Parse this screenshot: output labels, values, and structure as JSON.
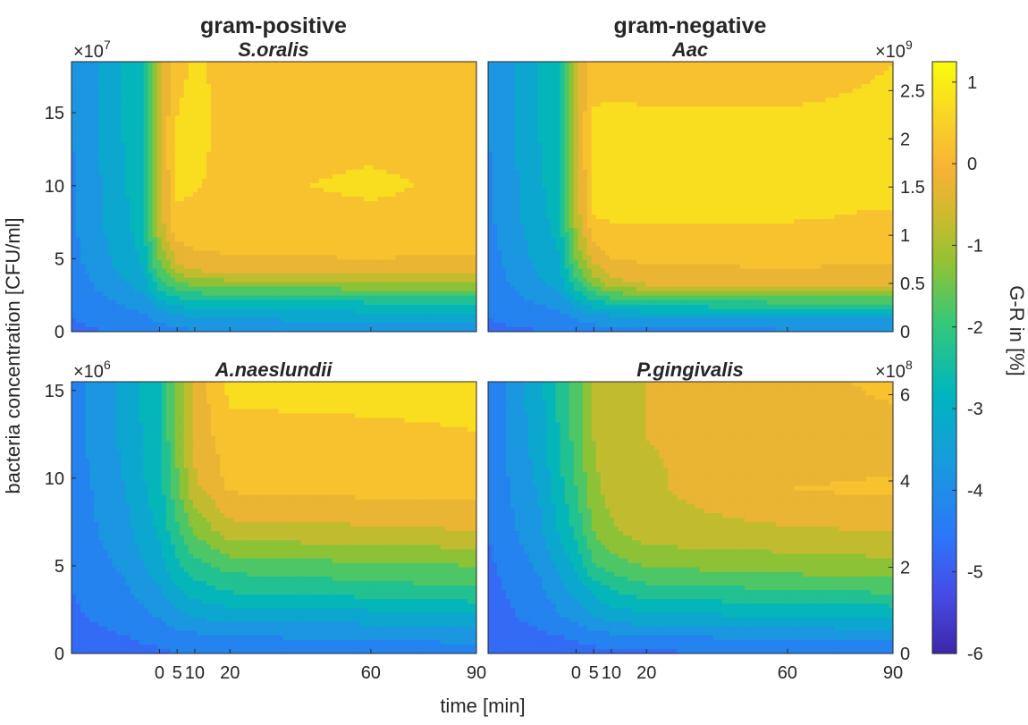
{
  "figure": {
    "column_titles": [
      "gram-positive",
      "gram-negative"
    ],
    "xlabel": "time [min]",
    "ylabel": "bacteria concentration [CFU/ml]",
    "colorbar_label": "G-R in [%]"
  },
  "chart_data": [
    {
      "type": "heatmap",
      "title": "S.oralis",
      "x_ticks": [
        "0",
        "5",
        "10",
        "20",
        "60",
        "90"
      ],
      "x_tick_values": [
        0,
        5,
        10,
        20,
        60,
        90
      ],
      "xlim": [
        -25,
        90
      ],
      "y_ticks": [
        "0",
        "5",
        "10",
        "15"
      ],
      "y_tick_values": [
        0,
        5,
        10,
        15
      ],
      "y_multiplier": "×10^7",
      "y_multiplier_base": "×10",
      "y_multiplier_exp": "7",
      "ylim": [
        0,
        18.5
      ],
      "y_axis_side": "left",
      "z_grid": {
        "x": [
          -25,
          -5,
          0,
          5,
          10,
          20,
          60,
          90
        ],
        "y": [
          0,
          1,
          2,
          3,
          4.5,
          7,
          10,
          14,
          18.5
        ],
        "z": [
          [
            -4.6,
            -4.4,
            -4.3,
            -4.2,
            -4.0,
            -4.0,
            -3.9,
            -3.9
          ],
          [
            -4.5,
            -4.1,
            -3.8,
            -3.6,
            -3.5,
            -3.4,
            -3.3,
            -3.3
          ],
          [
            -4.4,
            -3.8,
            -3.2,
            -2.8,
            -2.7,
            -2.6,
            -2.5,
            -2.5
          ],
          [
            -4.3,
            -3.4,
            -2.4,
            -1.9,
            -1.6,
            -1.5,
            -1.4,
            -1.4
          ],
          [
            -4.2,
            -3.0,
            -1.6,
            -0.6,
            -0.2,
            -0.1,
            -0.05,
            -0.1
          ],
          [
            -4.1,
            -2.8,
            -0.8,
            0.3,
            0.3,
            0.2,
            0.2,
            0.2
          ],
          [
            -4.1,
            -2.7,
            -0.6,
            0.6,
            0.55,
            0.3,
            0.65,
            0.3
          ],
          [
            -4.0,
            -2.6,
            -0.5,
            0.55,
            0.7,
            0.3,
            0.2,
            0.2
          ],
          [
            -4.0,
            -2.6,
            -0.5,
            0.3,
            0.6,
            0.3,
            0.2,
            0.2
          ]
        ]
      }
    },
    {
      "type": "heatmap",
      "title": "Aac",
      "x_ticks": [
        "0",
        "5",
        "10",
        "20",
        "60",
        "90"
      ],
      "x_tick_values": [
        0,
        5,
        10,
        20,
        60,
        90
      ],
      "xlim": [
        -25,
        90
      ],
      "y_ticks": [
        "0",
        "0.5",
        "1",
        "1.5",
        "2",
        "2.5"
      ],
      "y_tick_values": [
        0,
        0.5,
        1,
        1.5,
        2,
        2.5
      ],
      "y_multiplier": "×10^9",
      "y_multiplier_base": "×10",
      "y_multiplier_exp": "9",
      "ylim": [
        0,
        2.8
      ],
      "y_axis_side": "right",
      "z_grid": {
        "x": [
          -25,
          -5,
          0,
          5,
          10,
          20,
          60,
          90
        ],
        "y": [
          0,
          0.15,
          0.3,
          0.5,
          0.8,
          1.2,
          1.6,
          2.1,
          2.8
        ],
        "z": [
          [
            -4.6,
            -4.5,
            -4.4,
            -4.3,
            -4.2,
            -4.2,
            -4.1,
            -4.1
          ],
          [
            -4.5,
            -4.2,
            -3.9,
            -3.7,
            -3.6,
            -3.5,
            -3.4,
            -3.4
          ],
          [
            -4.4,
            -3.8,
            -3.2,
            -2.7,
            -2.4,
            -2.2,
            -2.0,
            -2.0
          ],
          [
            -4.3,
            -3.3,
            -2.2,
            -1.3,
            -0.7,
            -0.4,
            -0.3,
            -0.4
          ],
          [
            -4.2,
            -3.0,
            -1.3,
            -0.2,
            0.1,
            0.2,
            0.25,
            0.2
          ],
          [
            -4.1,
            -2.8,
            -0.8,
            0.5,
            0.6,
            0.6,
            0.55,
            0.45
          ],
          [
            -4.1,
            -2.7,
            -0.6,
            0.6,
            0.65,
            0.6,
            0.6,
            0.7
          ],
          [
            -4.0,
            -2.6,
            -0.5,
            0.6,
            0.65,
            0.6,
            0.6,
            0.6
          ],
          [
            -4.0,
            -2.6,
            -0.5,
            0.3,
            0.3,
            0.3,
            0.3,
            0.5
          ]
        ]
      }
    },
    {
      "type": "heatmap",
      "title": "A.naeslundii",
      "x_ticks": [
        "0",
        "5",
        "10",
        "20",
        "60",
        "90"
      ],
      "x_tick_values": [
        0,
        5,
        10,
        20,
        60,
        90
      ],
      "xlim": [
        -25,
        90
      ],
      "y_ticks": [
        "0",
        "5",
        "10",
        "15"
      ],
      "y_tick_values": [
        0,
        5,
        10,
        15
      ],
      "y_multiplier": "×10^6",
      "y_multiplier_base": "×10",
      "y_multiplier_exp": "6",
      "ylim": [
        0,
        15.5
      ],
      "y_axis_side": "left",
      "z_grid": {
        "x": [
          -25,
          -10,
          0,
          5,
          10,
          20,
          60,
          90
        ],
        "y": [
          0,
          1,
          2,
          3.5,
          5,
          7,
          9.5,
          12,
          15.5
        ],
        "z": [
          [
            -4.8,
            -4.7,
            -4.6,
            -4.5,
            -4.4,
            -4.4,
            -4.3,
            -4.3
          ],
          [
            -4.7,
            -4.5,
            -4.3,
            -4.2,
            -4.1,
            -4.0,
            -3.9,
            -3.8
          ],
          [
            -4.6,
            -4.3,
            -4.0,
            -3.7,
            -3.5,
            -3.4,
            -3.3,
            -3.2
          ],
          [
            -4.5,
            -4.1,
            -3.6,
            -3.1,
            -2.8,
            -2.5,
            -2.3,
            -2.1
          ],
          [
            -4.4,
            -3.9,
            -3.2,
            -2.6,
            -2.2,
            -1.8,
            -1.6,
            -1.5
          ],
          [
            -4.3,
            -3.7,
            -2.9,
            -2.1,
            -1.4,
            -0.7,
            -0.6,
            -0.5
          ],
          [
            -4.3,
            -3.5,
            -2.7,
            -1.6,
            -0.6,
            0.1,
            0.2,
            0.2
          ],
          [
            -4.2,
            -3.4,
            -2.6,
            -1.4,
            -0.4,
            0.3,
            0.35,
            0.45
          ],
          [
            -4.2,
            -3.4,
            -2.5,
            -1.3,
            -0.3,
            0.65,
            0.7,
            0.7
          ]
        ]
      }
    },
    {
      "type": "heatmap",
      "title": "P.gingivalis",
      "x_ticks": [
        "0",
        "5",
        "10",
        "20",
        "60",
        "90"
      ],
      "x_tick_values": [
        0,
        5,
        10,
        20,
        60,
        90
      ],
      "xlim": [
        -25,
        90
      ],
      "y_ticks": [
        "0",
        "2",
        "4",
        "6"
      ],
      "y_tick_values": [
        0,
        2,
        4,
        6
      ],
      "y_multiplier": "×10^8",
      "y_multiplier_base": "×10",
      "y_multiplier_exp": "8",
      "ylim": [
        0,
        6.3
      ],
      "y_axis_side": "right",
      "z_grid": {
        "x": [
          -25,
          -10,
          0,
          5,
          10,
          20,
          60,
          90
        ],
        "y": [
          0,
          0.4,
          0.8,
          1.4,
          2.0,
          2.8,
          3.8,
          5.0,
          6.3
        ],
        "z": [
          [
            -5.0,
            -4.9,
            -4.8,
            -4.7,
            -4.7,
            -4.6,
            -4.5,
            -4.5
          ],
          [
            -4.9,
            -4.6,
            -4.4,
            -4.2,
            -4.1,
            -4.0,
            -3.9,
            -3.8
          ],
          [
            -4.8,
            -4.3,
            -3.9,
            -3.6,
            -3.4,
            -3.2,
            -3.1,
            -3.0
          ],
          [
            -4.7,
            -4.1,
            -3.4,
            -2.9,
            -2.6,
            -2.3,
            -2.1,
            -2.0
          ],
          [
            -4.6,
            -3.9,
            -2.9,
            -2.1,
            -1.8,
            -1.5,
            -1.3,
            -1.2
          ],
          [
            -4.5,
            -3.6,
            -2.4,
            -1.5,
            -1.1,
            -0.7,
            -0.6,
            -0.5
          ],
          [
            -4.4,
            -3.4,
            -2.0,
            -1.1,
            -0.8,
            -0.6,
            0.0,
            0.1
          ],
          [
            -4.4,
            -3.2,
            -1.8,
            -1.0,
            -0.8,
            -0.5,
            -0.3,
            -0.3
          ],
          [
            -4.4,
            -3.1,
            -1.7,
            -1.0,
            -0.8,
            -0.5,
            -0.3,
            0.2
          ]
        ]
      }
    }
  ],
  "colorbar": {
    "ticks": [
      "1",
      "0",
      "-1",
      "-2",
      "-3",
      "-4",
      "-5",
      "-6"
    ],
    "tick_values": [
      1,
      0,
      -1,
      -2,
      -3,
      -4,
      -5,
      -6
    ],
    "range": [
      -6,
      1.25
    ],
    "colormap": "parula",
    "levels": [
      -6,
      -5.5,
      -5,
      -4.5,
      -4,
      -3.5,
      -3,
      -2.5,
      -2,
      -1.5,
      -1,
      -0.5,
      0,
      0.5,
      1,
      1.25
    ]
  }
}
